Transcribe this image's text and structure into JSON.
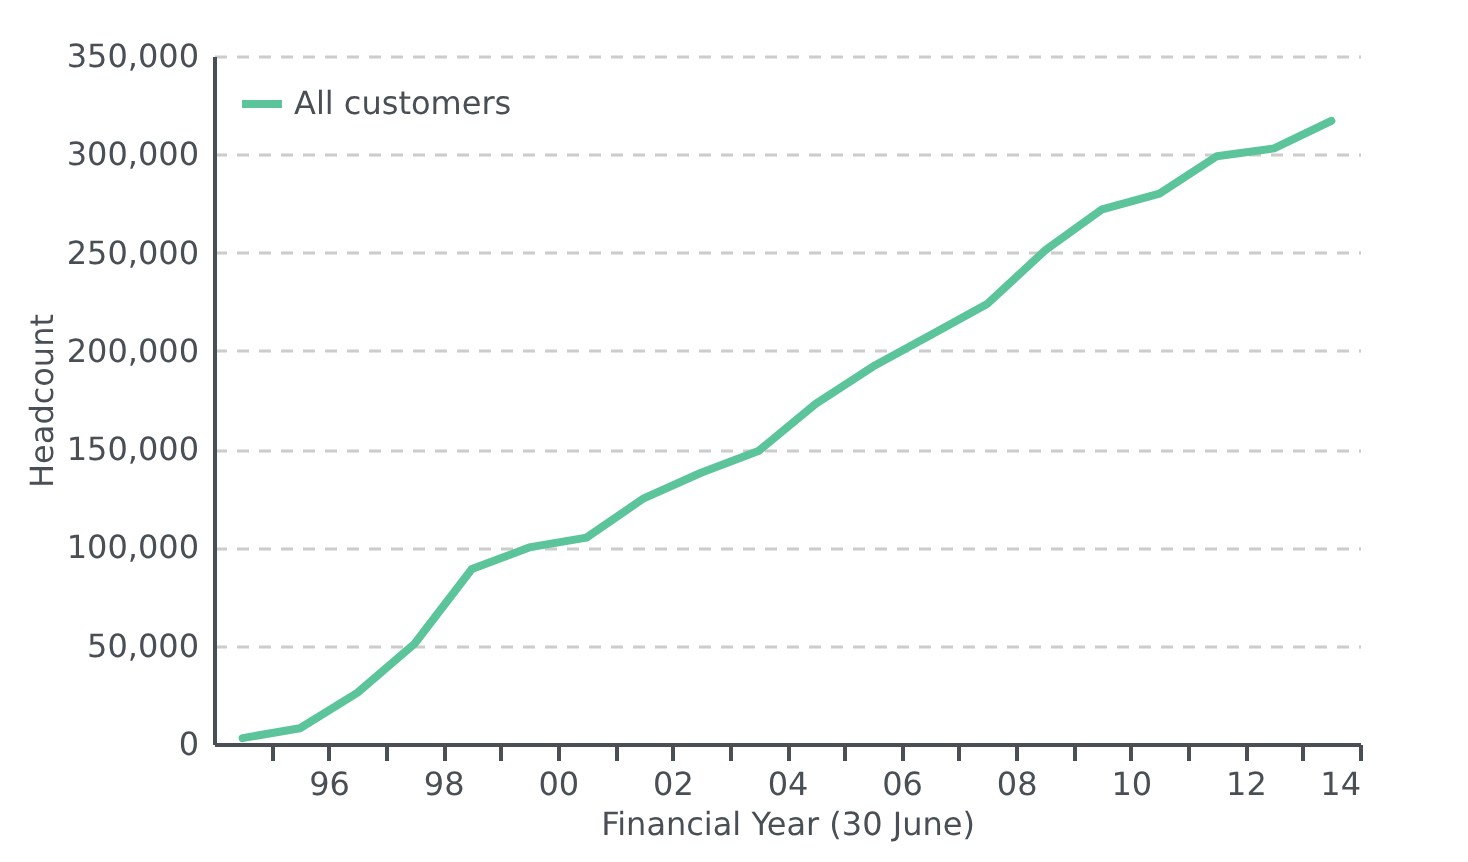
{
  "chart_data": {
    "type": "line",
    "xlabel": "Financial Year (30 June)",
    "ylabel": "Headcount",
    "x": [
      1994.5,
      1995.5,
      1996.5,
      1997.5,
      1998.5,
      1999.5,
      2000.5,
      2001.5,
      2002.5,
      2003.5,
      2004.5,
      2005.5,
      2006.5,
      2007.5,
      2008.5,
      2009.5,
      2010.5,
      2011.5,
      2012.5,
      2013.5
    ],
    "series": [
      {
        "name": "All customers",
        "color": "#5cc49a",
        "values": [
          3000,
          8000,
          26000,
          51000,
          89000,
          100000,
          105000,
          125000,
          138000,
          149000,
          173000,
          192000,
          208000,
          224000,
          251000,
          272000,
          280000,
          299000,
          303000,
          317000
        ]
      }
    ],
    "xlim": [
      1994,
      2014
    ],
    "xticks": [
      {
        "value": 1995,
        "label": null
      },
      {
        "value": 1996,
        "label": "96"
      },
      {
        "value": 1997,
        "label": null
      },
      {
        "value": 1998,
        "label": "98"
      },
      {
        "value": 1999,
        "label": null
      },
      {
        "value": 2000,
        "label": "00"
      },
      {
        "value": 2001,
        "label": null
      },
      {
        "value": 2002,
        "label": "02"
      },
      {
        "value": 2003,
        "label": null
      },
      {
        "value": 2004,
        "label": "04"
      },
      {
        "value": 2005,
        "label": null
      },
      {
        "value": 2006,
        "label": "06"
      },
      {
        "value": 2007,
        "label": null
      },
      {
        "value": 2008,
        "label": "08"
      },
      {
        "value": 2009,
        "label": null
      },
      {
        "value": 2010,
        "label": "10"
      },
      {
        "value": 2011,
        "label": null
      },
      {
        "value": 2012,
        "label": "12"
      },
      {
        "value": 2013,
        "label": null
      },
      {
        "value": 2014,
        "label": "14"
      }
    ],
    "ylim": [
      0,
      350000
    ],
    "yticks": [
      0,
      {
        "value": 50000,
        "label": "50,000"
      },
      {
        "value": 100000,
        "label": "100,000"
      },
      {
        "value": 150000,
        "label": "150,000"
      },
      {
        "value": 200000,
        "label": "200,000"
      },
      {
        "value": 250000,
        "label": "250,000"
      },
      {
        "value": 300000,
        "label": "300,000"
      },
      {
        "value": 350000,
        "label": "350,000"
      }
    ],
    "grid": "y",
    "legend": "top left",
    "marker": "none",
    "line_style": "solid"
  }
}
